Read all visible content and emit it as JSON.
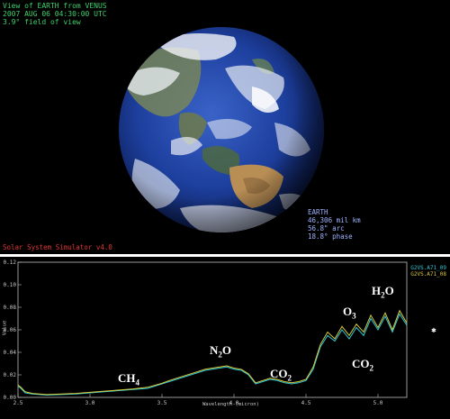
{
  "header": {
    "line1": "View of EARTH from VENUS",
    "line2": "2007 AUG 06 04:30:00 UTC",
    "line3": "3.9° field of view"
  },
  "earth_info": {
    "name": "EARTH",
    "distance": "46,306 mil km",
    "arc": "56.8\" arc",
    "phase": "18.8° phase"
  },
  "simulator_label": "Solar System Simulator v4.0",
  "legend": {
    "series1": "G2VS.A71_09",
    "series2": "G2VS.A71_08"
  },
  "molecules": {
    "ch4": {
      "base": "CH",
      "sub": "4"
    },
    "n2o": {
      "base": "N",
      "sub": "2",
      "rest": "O"
    },
    "co2_a": {
      "base": "CO",
      "sub": "2"
    },
    "o3": {
      "base": "O",
      "sub": "3"
    },
    "h2o": {
      "base": "H",
      "sub": "2",
      "rest": "O"
    },
    "co2_b": {
      "base": "CO",
      "sub": "2"
    }
  },
  "axes": {
    "ylabel": "Value",
    "xlabel": "Wavelength (micron)",
    "x_ticks": [
      "2.5",
      "3.0",
      "3.5",
      "4.0",
      "4.5",
      "5.0"
    ],
    "y_ticks": [
      "0.00",
      "0.02",
      "0.04",
      "0.06",
      "0.08",
      "0.10",
      "0.12"
    ]
  },
  "chart_data": {
    "type": "line",
    "x_range": [
      2.5,
      5.2
    ],
    "y_range": [
      0.0,
      0.12
    ],
    "series": [
      {
        "name": "G2VS.A71_09",
        "color": "#2ec9d8",
        "x": [
          2.5,
          2.52,
          2.55,
          2.6,
          2.7,
          2.8,
          2.9,
          3.0,
          3.1,
          3.2,
          3.3,
          3.4,
          3.5,
          3.55,
          3.6,
          3.65,
          3.7,
          3.75,
          3.8,
          3.85,
          3.9,
          3.95,
          4.0,
          4.05,
          4.1,
          4.15,
          4.2,
          4.25,
          4.3,
          4.35,
          4.4,
          4.45,
          4.5,
          4.55,
          4.6,
          4.65,
          4.7,
          4.75,
          4.8,
          4.85,
          4.9,
          4.95,
          5.0,
          5.05,
          5.1,
          5.15,
          5.2
        ],
        "y": [
          0.01,
          0.008,
          0.004,
          0.003,
          0.002,
          0.0025,
          0.003,
          0.004,
          0.005,
          0.006,
          0.007,
          0.008,
          0.012,
          0.014,
          0.016,
          0.018,
          0.02,
          0.022,
          0.024,
          0.025,
          0.026,
          0.027,
          0.025,
          0.024,
          0.02,
          0.012,
          0.014,
          0.016,
          0.015,
          0.013,
          0.012,
          0.013,
          0.015,
          0.025,
          0.045,
          0.055,
          0.05,
          0.06,
          0.052,
          0.062,
          0.055,
          0.07,
          0.06,
          0.072,
          0.058,
          0.074,
          0.064
        ]
      },
      {
        "name": "G2VS.A71_08",
        "color": "#d8c93a",
        "x": [
          2.5,
          2.52,
          2.55,
          2.6,
          2.7,
          2.8,
          2.9,
          3.0,
          3.1,
          3.2,
          3.3,
          3.4,
          3.5,
          3.55,
          3.6,
          3.65,
          3.7,
          3.75,
          3.8,
          3.85,
          3.9,
          3.95,
          4.0,
          4.05,
          4.1,
          4.15,
          4.2,
          4.25,
          4.3,
          4.35,
          4.4,
          4.45,
          4.5,
          4.55,
          4.6,
          4.65,
          4.7,
          4.75,
          4.8,
          4.85,
          4.9,
          4.95,
          5.0,
          5.05,
          5.1,
          5.15,
          5.2
        ],
        "y": [
          0.011,
          0.009,
          0.005,
          0.0035,
          0.0025,
          0.003,
          0.0035,
          0.0045,
          0.0055,
          0.0065,
          0.0075,
          0.009,
          0.0125,
          0.015,
          0.017,
          0.019,
          0.021,
          0.023,
          0.025,
          0.026,
          0.027,
          0.028,
          0.026,
          0.025,
          0.021,
          0.013,
          0.015,
          0.017,
          0.016,
          0.014,
          0.013,
          0.014,
          0.016,
          0.027,
          0.047,
          0.058,
          0.052,
          0.063,
          0.055,
          0.065,
          0.058,
          0.073,
          0.062,
          0.075,
          0.06,
          0.077,
          0.066
        ]
      }
    ]
  }
}
